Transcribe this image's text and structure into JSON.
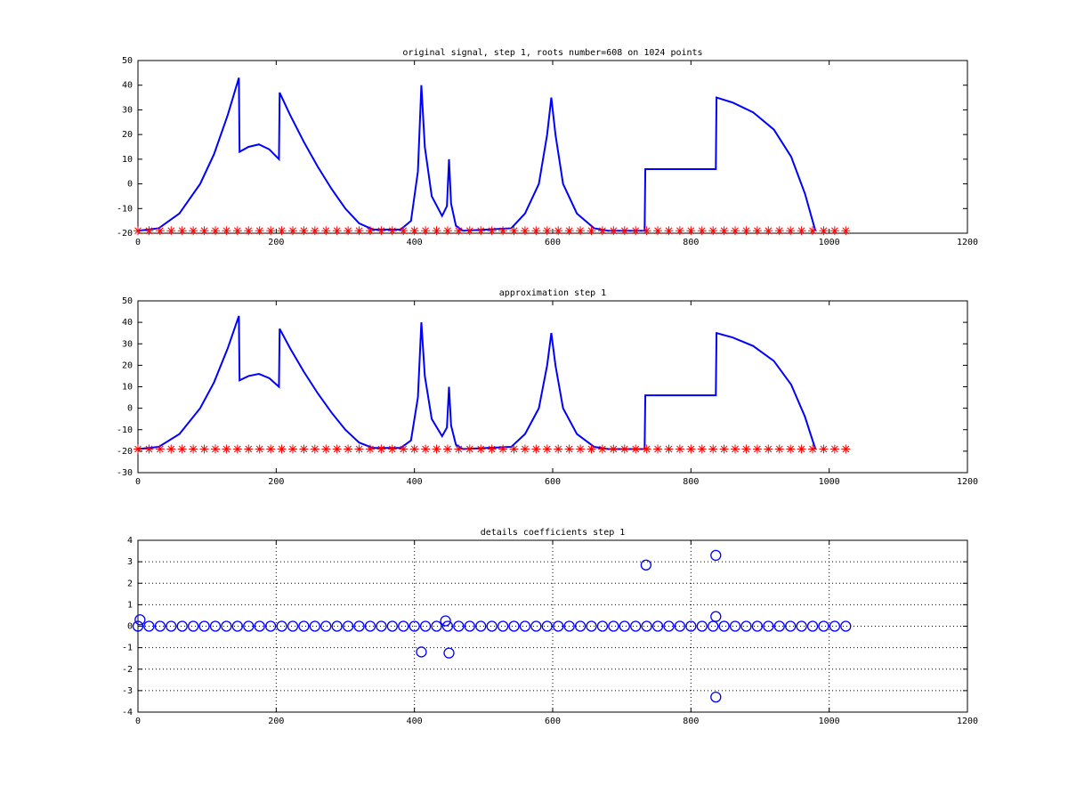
{
  "chart_data": [
    {
      "type": "line",
      "title": "original signal, step 1, roots number=608 on 1024 points",
      "xlim": [
        0,
        1200
      ],
      "xticks": [
        0,
        200,
        400,
        600,
        800,
        1000,
        1200
      ],
      "ylim": [
        -20,
        50
      ],
      "yticks": [
        -20,
        -10,
        0,
        10,
        20,
        30,
        40,
        50
      ],
      "grid": false,
      "series": [
        {
          "color": "#0000ff",
          "marker": "none",
          "x": [
            0,
            30,
            60,
            90,
            110,
            130,
            146,
            147,
            160,
            175,
            190,
            204,
            205,
            220,
            240,
            260,
            280,
            300,
            320,
            340,
            380,
            395,
            405,
            410,
            415,
            425,
            440,
            447,
            450,
            453,
            460,
            470,
            540,
            560,
            580,
            592,
            598,
            604,
            615,
            635,
            660,
            680,
            733,
            734,
            836,
            837,
            860,
            890,
            920,
            945,
            965,
            980
          ],
          "values": [
            -19,
            -18,
            -12,
            0,
            12,
            28,
            43,
            13,
            15,
            16,
            14,
            10,
            37,
            28,
            17,
            7,
            -2,
            -10,
            -16,
            -18.5,
            -18.5,
            -15,
            5,
            40,
            15,
            -5,
            -13,
            -9,
            10,
            -8,
            -17,
            -19,
            -18,
            -12,
            0,
            20,
            35,
            20,
            0,
            -12,
            -18,
            -19,
            -19,
            6,
            6,
            35,
            33,
            29,
            22,
            11,
            -4,
            -19
          ]
        },
        {
          "color": "#ff0000",
          "marker": "*",
          "x": [
            0,
            16,
            32,
            48,
            64,
            80,
            96,
            112,
            128,
            144,
            160,
            176,
            192,
            208,
            224,
            240,
            256,
            272,
            288,
            304,
            320,
            336,
            352,
            368,
            384,
            400,
            416,
            432,
            448,
            464,
            480,
            496,
            512,
            528,
            544,
            560,
            576,
            592,
            608,
            624,
            640,
            656,
            672,
            688,
            704,
            720,
            736,
            752,
            768,
            784,
            800,
            816,
            832,
            848,
            864,
            880,
            896,
            912,
            928,
            944,
            960,
            976,
            992,
            1008,
            1024
          ],
          "values": [
            -19,
            -19,
            -19,
            -19,
            -19,
            -19,
            -19,
            -19,
            -19,
            -19,
            -19,
            -19,
            -19,
            -19,
            -19,
            -19,
            -19,
            -19,
            -19,
            -19,
            -19,
            -19,
            -19,
            -19,
            -19,
            -19,
            -19,
            -19,
            -19,
            -19,
            -19,
            -19,
            -19,
            -19,
            -19,
            -19,
            -19,
            -19,
            -19,
            -19,
            -19,
            -19,
            -19,
            -19,
            -19,
            -19,
            -19,
            -19,
            -19,
            -19,
            -19,
            -19,
            -19,
            -19,
            -19,
            -19,
            -19,
            -19,
            -19,
            -19,
            -19,
            -19,
            -19,
            -19,
            -19
          ]
        }
      ]
    },
    {
      "type": "line",
      "title": "approximation step 1",
      "xlim": [
        0,
        1200
      ],
      "xticks": [
        0,
        200,
        400,
        600,
        800,
        1000,
        1200
      ],
      "ylim": [
        -30,
        50
      ],
      "yticks": [
        -30,
        -20,
        -10,
        0,
        10,
        20,
        30,
        40,
        50
      ],
      "grid": false,
      "series": [
        {
          "color": "#0000ff",
          "marker": "none",
          "x": [
            0,
            30,
            60,
            90,
            110,
            130,
            146,
            147,
            160,
            175,
            190,
            204,
            205,
            220,
            240,
            260,
            280,
            300,
            320,
            340,
            380,
            395,
            405,
            410,
            415,
            425,
            440,
            447,
            450,
            453,
            460,
            470,
            540,
            560,
            580,
            592,
            598,
            604,
            615,
            635,
            660,
            680,
            733,
            734,
            836,
            837,
            860,
            890,
            920,
            945,
            965,
            980
          ],
          "values": [
            -19,
            -18,
            -12,
            0,
            12,
            28,
            43,
            13,
            15,
            16,
            14,
            10,
            37,
            28,
            17,
            7,
            -2,
            -10,
            -16,
            -18.5,
            -18.5,
            -15,
            5,
            40,
            15,
            -5,
            -13,
            -9,
            10,
            -8,
            -17,
            -19,
            -18,
            -12,
            0,
            20,
            35,
            20,
            0,
            -12,
            -18,
            -19,
            -19,
            6,
            6,
            35,
            33,
            29,
            22,
            11,
            -4,
            -19
          ]
        },
        {
          "color": "#ff0000",
          "marker": "*",
          "x": [
            0,
            16,
            32,
            48,
            64,
            80,
            96,
            112,
            128,
            144,
            160,
            176,
            192,
            208,
            224,
            240,
            256,
            272,
            288,
            304,
            320,
            336,
            352,
            368,
            384,
            400,
            416,
            432,
            448,
            464,
            480,
            496,
            512,
            528,
            544,
            560,
            576,
            592,
            608,
            624,
            640,
            656,
            672,
            688,
            704,
            720,
            736,
            752,
            768,
            784,
            800,
            816,
            832,
            848,
            864,
            880,
            896,
            912,
            928,
            944,
            960,
            976,
            992,
            1008,
            1024
          ],
          "values": [
            -19,
            -19,
            -19,
            -19,
            -19,
            -19,
            -19,
            -19,
            -19,
            -19,
            -19,
            -19,
            -19,
            -19,
            -19,
            -19,
            -19,
            -19,
            -19,
            -19,
            -19,
            -19,
            -19,
            -19,
            -19,
            -19,
            -19,
            -19,
            -19,
            -19,
            -19,
            -19,
            -19,
            -19,
            -19,
            -19,
            -19,
            -19,
            -19,
            -19,
            -19,
            -19,
            -19,
            -19,
            -19,
            -19,
            -19,
            -19,
            -19,
            -19,
            -19,
            -19,
            -19,
            -19,
            -19,
            -19,
            -19,
            -19,
            -19,
            -19,
            -19,
            -19,
            -19,
            -19,
            -19
          ]
        }
      ]
    },
    {
      "type": "scatter",
      "title": "details coefficients step 1",
      "xlim": [
        0,
        1200
      ],
      "xticks": [
        0,
        200,
        400,
        600,
        800,
        1000,
        1200
      ],
      "ylim": [
        -4,
        4
      ],
      "yticks": [
        -4,
        -3,
        -2,
        -1,
        0,
        1,
        2,
        3,
        4
      ],
      "grid": true,
      "series": [
        {
          "color": "#0000ff",
          "marker": "o",
          "x": [
            0,
            16,
            32,
            48,
            64,
            80,
            96,
            112,
            128,
            144,
            160,
            176,
            192,
            208,
            224,
            240,
            256,
            272,
            288,
            304,
            320,
            336,
            352,
            368,
            384,
            400,
            416,
            432,
            448,
            464,
            480,
            496,
            512,
            528,
            544,
            560,
            576,
            592,
            608,
            624,
            640,
            656,
            672,
            688,
            704,
            720,
            736,
            752,
            768,
            784,
            800,
            816,
            832,
            848,
            864,
            880,
            896,
            912,
            928,
            944,
            960,
            976,
            992,
            1008,
            1024,
            3,
            410,
            450,
            735,
            836,
            836,
            836,
            445
          ],
          "values": [
            0,
            0,
            0,
            0,
            0,
            0,
            0,
            0,
            0,
            0,
            0,
            0,
            0,
            0,
            0,
            0,
            0,
            0,
            0,
            0,
            0,
            0,
            0,
            0,
            0,
            0,
            0,
            0,
            0,
            0,
            0,
            0,
            0,
            0,
            0,
            0,
            0,
            0,
            0,
            0,
            0,
            0,
            0,
            0,
            0,
            0,
            0,
            0,
            0,
            0,
            0,
            0,
            0,
            0,
            0,
            0,
            0,
            0,
            0,
            0,
            0,
            0,
            0,
            0,
            0,
            0.3,
            -1.2,
            -1.25,
            2.85,
            3.3,
            0.45,
            -3.3,
            0.25
          ]
        }
      ]
    }
  ]
}
